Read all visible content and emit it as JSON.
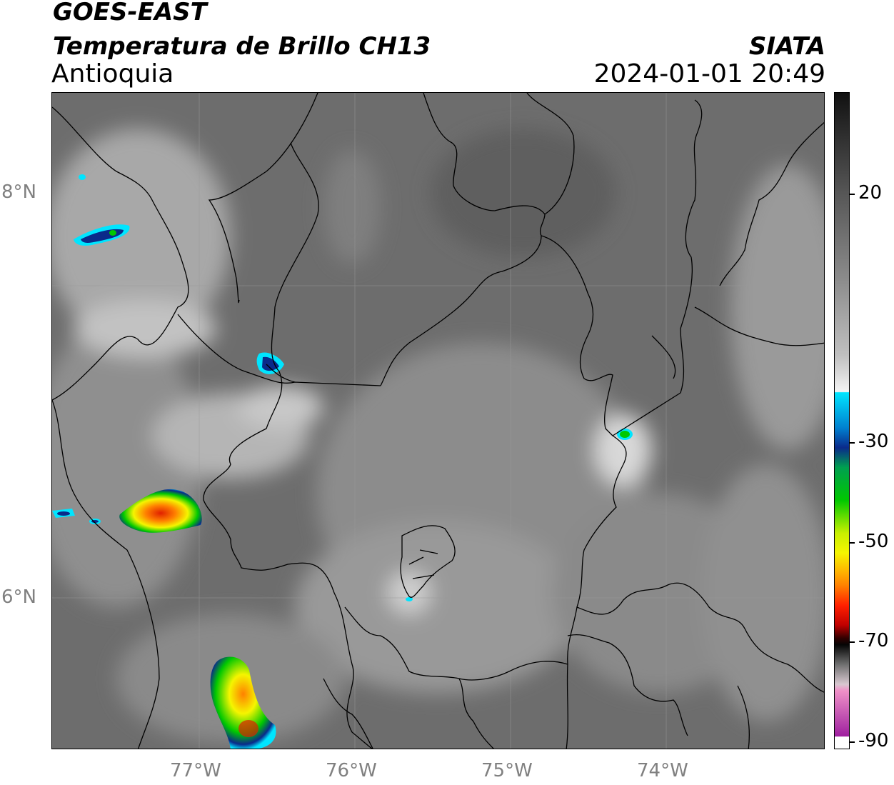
{
  "header": {
    "satellite": "GOES-EAST",
    "product": "Temperatura de Brillo CH13",
    "region": "Antioquia",
    "organization": "SIATA",
    "datetime": "2024-01-01 20:49"
  },
  "map": {
    "latitude_labels": [
      "8°N",
      "6°N"
    ],
    "longitude_labels": [
      "77°W",
      "76°W",
      "75°W",
      "74°W"
    ],
    "grid": true
  },
  "colorbar": {
    "tick_labels": [
      "20",
      "-30",
      "-50",
      "-70",
      "-90"
    ],
    "colors": {
      "warm_top": "#111111",
      "mid_gray": "#8a8a8a",
      "white": "#f4f4f4",
      "cyan": "#00e5ff",
      "blue": "#0a2a8a",
      "green": "#00c800",
      "yellow": "#f5f500",
      "orange": "#ff8000",
      "red": "#e00000",
      "black": "#050505",
      "pink": "#f090c8",
      "magenta": "#a020a0"
    }
  }
}
